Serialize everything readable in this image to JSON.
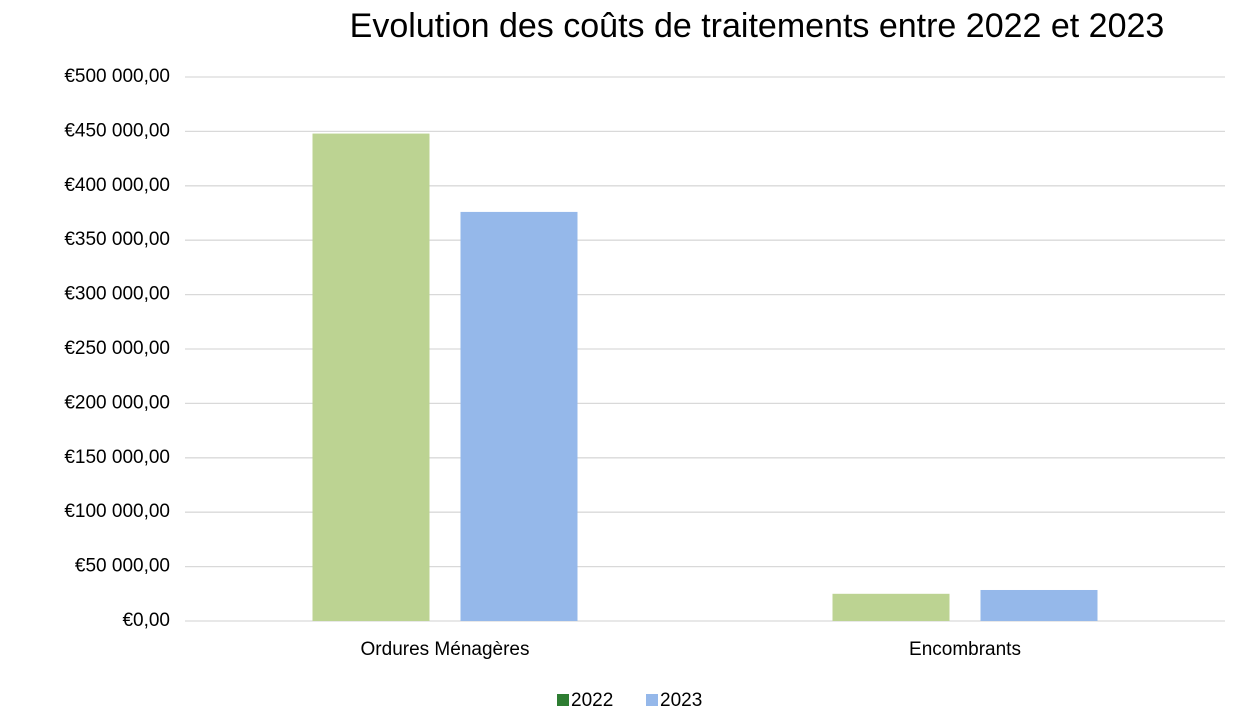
{
  "chart_data": {
    "type": "bar",
    "title": "Evolution des coûts de traitements entre 2022 et 2023",
    "categories": [
      "Ordures Ménagères",
      "Encombrants"
    ],
    "series": [
      {
        "name": "2022",
        "color": "#bcd392",
        "legend_color": "#2e7d32",
        "values": [
          448000,
          25000
        ]
      },
      {
        "name": "2023",
        "color": "#95b8ea",
        "legend_color": "#95b8ea",
        "values": [
          376000,
          28500
        ]
      }
    ],
    "ylim": [
      0,
      500000
    ],
    "yticks": [
      {
        "value": 0,
        "label": "€0,00"
      },
      {
        "value": 50000,
        "label": "€50 000,00"
      },
      {
        "value": 100000,
        "label": "€100 000,00"
      },
      {
        "value": 150000,
        "label": "€150 000,00"
      },
      {
        "value": 200000,
        "label": "€200 000,00"
      },
      {
        "value": 250000,
        "label": "€250 000,00"
      },
      {
        "value": 300000,
        "label": "€300 000,00"
      },
      {
        "value": 350000,
        "label": "€350 000,00"
      },
      {
        "value": 400000,
        "label": "€400 000,00"
      },
      {
        "value": 450000,
        "label": "€450 000,00"
      },
      {
        "value": 500000,
        "label": "€500 000,00"
      }
    ],
    "grid": true,
    "legend": "bottom"
  }
}
